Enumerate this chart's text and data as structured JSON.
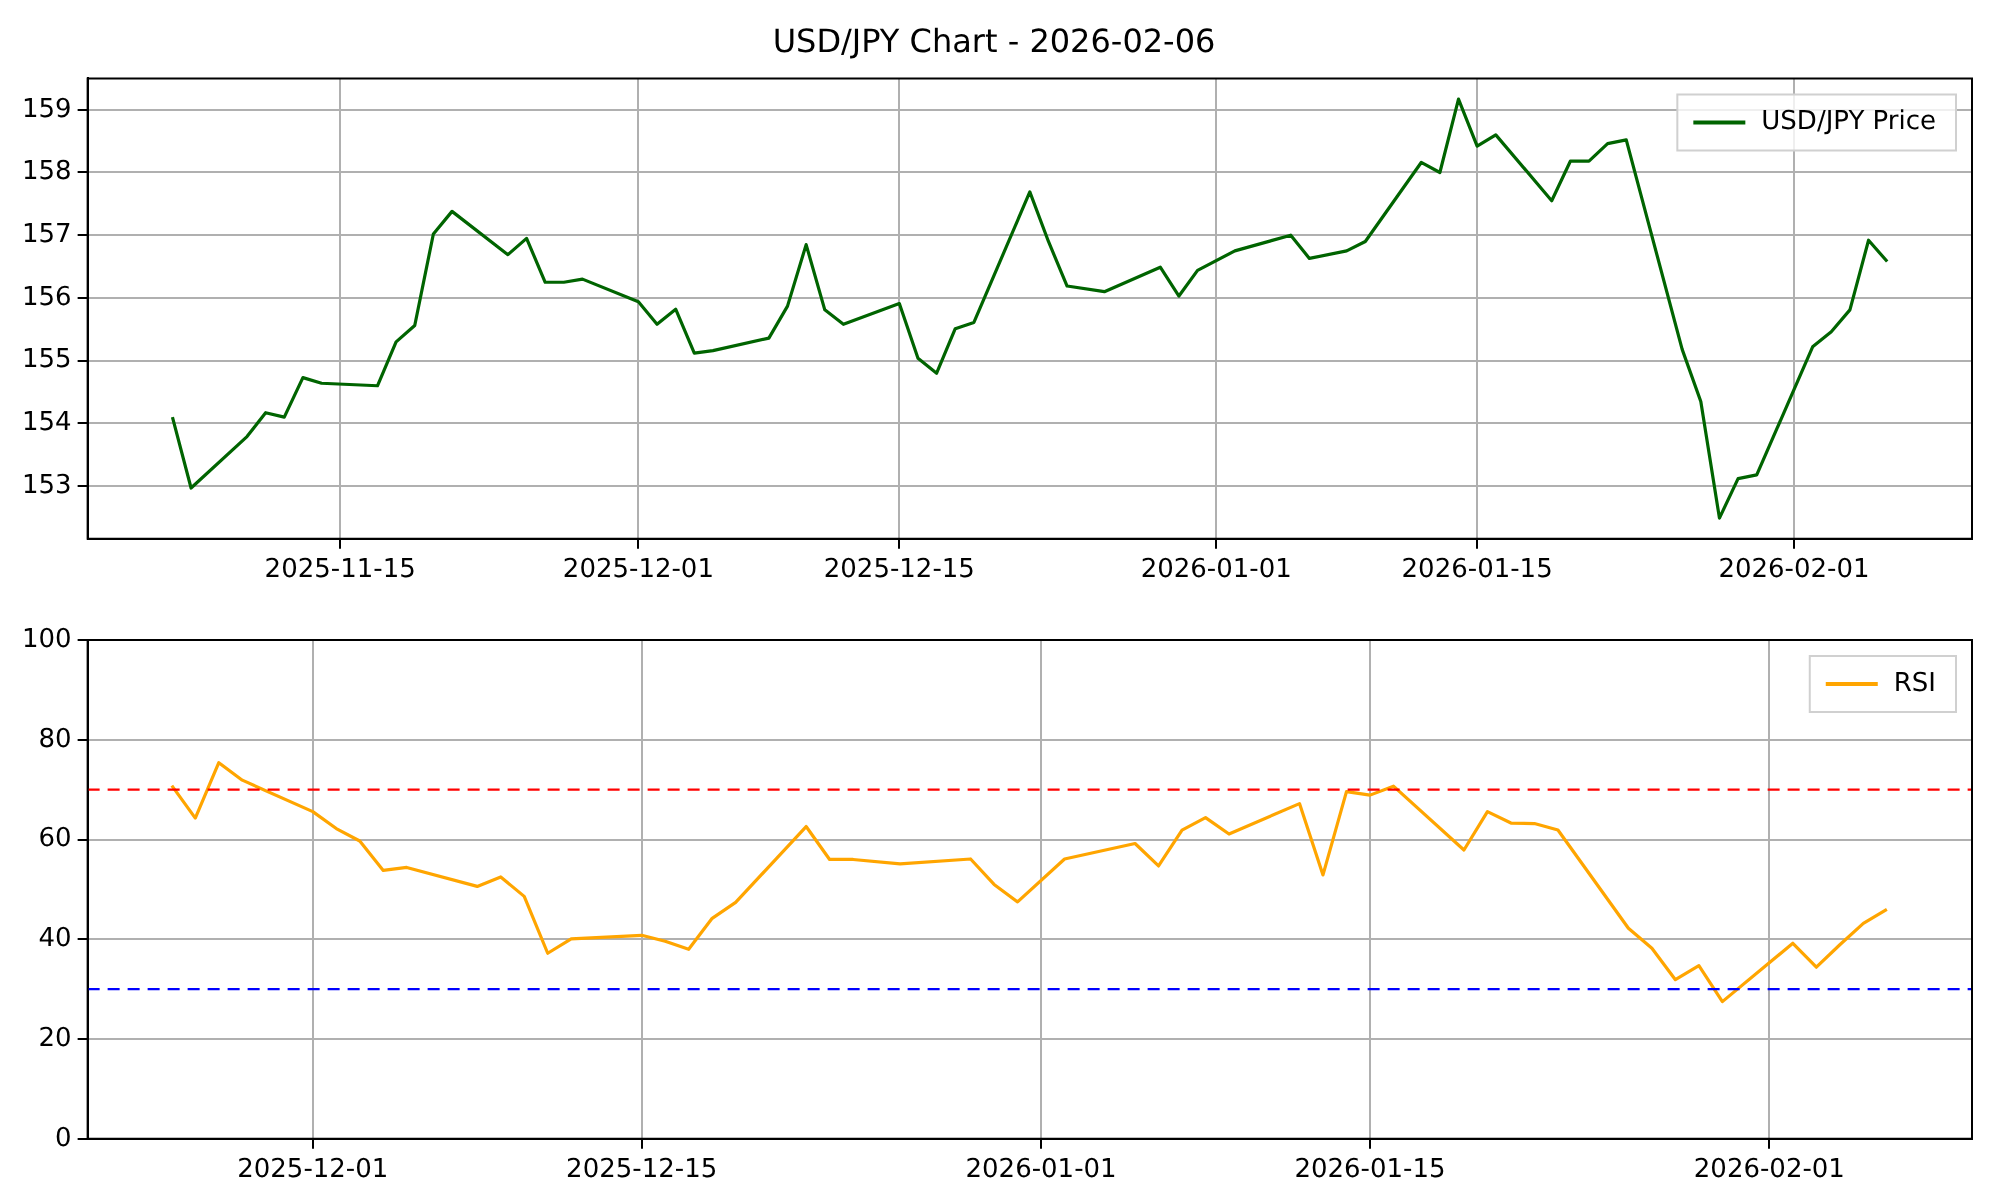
{
  "chart_data": [
    {
      "type": "line",
      "title": "USD/JPY Chart - 2026-02-06",
      "x": [
        "2025-11-06",
        "2025-11-07",
        "2025-11-10",
        "2025-11-11",
        "2025-11-12",
        "2025-11-13",
        "2025-11-14",
        "2025-11-17",
        "2025-11-18",
        "2025-11-19",
        "2025-11-20",
        "2025-11-21",
        "2025-11-24",
        "2025-11-25",
        "2025-11-26",
        "2025-11-27",
        "2025-11-28",
        "2025-12-01",
        "2025-12-02",
        "2025-12-03",
        "2025-12-04",
        "2025-12-05",
        "2025-12-08",
        "2025-12-09",
        "2025-12-10",
        "2025-12-11",
        "2025-12-12",
        "2025-12-15",
        "2025-12-16",
        "2025-12-17",
        "2025-12-18",
        "2025-12-19",
        "2025-12-22",
        "2025-12-23",
        "2025-12-24",
        "2025-12-26",
        "2025-12-29",
        "2025-12-30",
        "2025-12-31",
        "2026-01-02",
        "2026-01-05",
        "2026-01-06",
        "2026-01-08",
        "2026-01-09",
        "2026-01-12",
        "2026-01-13",
        "2026-01-14",
        "2026-01-15",
        "2026-01-16",
        "2026-01-19",
        "2026-01-20",
        "2026-01-21",
        "2026-01-22",
        "2026-01-23",
        "2026-01-26",
        "2026-01-27",
        "2026-01-28",
        "2026-01-29",
        "2026-01-30",
        "2026-02-02",
        "2026-02-03",
        "2026-02-04",
        "2026-02-05",
        "2026-02-06"
      ],
      "series": [
        {
          "name": "USD/JPY Price",
          "color": "#006400",
          "values": [
            154.1,
            152.97,
            153.79,
            154.17,
            154.1,
            154.73,
            154.64,
            154.6,
            155.3,
            155.56,
            157.02,
            157.38,
            156.69,
            156.95,
            156.25,
            156.25,
            156.3,
            155.94,
            155.58,
            155.82,
            155.12,
            155.16,
            155.36,
            155.87,
            156.85,
            155.81,
            155.58,
            155.91,
            155.04,
            154.8,
            155.51,
            155.61,
            157.69,
            156.9,
            156.19,
            156.1,
            156.49,
            156.03,
            156.44,
            156.75,
            157.0,
            156.63,
            156.75,
            156.9,
            158.16,
            158.0,
            159.17,
            158.42,
            158.6,
            157.55,
            158.18,
            158.18,
            158.46,
            158.52,
            155.18,
            154.35,
            152.49,
            153.12,
            153.18,
            155.22,
            155.46,
            155.81,
            156.92,
            156.58
          ]
        }
      ],
      "xlim": [
        "2025-11-01T10:48",
        "2026-02-10T13:12"
      ],
      "xticks": [
        "2025-11-15",
        "2025-12-01",
        "2025-12-15",
        "2026-01-01",
        "2026-01-15",
        "2026-02-01"
      ],
      "ylim": [
        152.16,
        159.5
      ],
      "yticks": [
        153,
        154,
        155,
        156,
        157,
        158,
        159
      ],
      "grid": true,
      "legend": "top right"
    },
    {
      "type": "line",
      "x": [
        "2025-11-25",
        "2025-11-26",
        "2025-11-27",
        "2025-11-28",
        "2025-12-01",
        "2025-12-02",
        "2025-12-03",
        "2025-12-04",
        "2025-12-05",
        "2025-12-08",
        "2025-12-09",
        "2025-12-10",
        "2025-12-11",
        "2025-12-12",
        "2025-12-15",
        "2025-12-16",
        "2025-12-17",
        "2025-12-18",
        "2025-12-19",
        "2025-12-22",
        "2025-12-23",
        "2025-12-24",
        "2025-12-26",
        "2025-12-29",
        "2025-12-30",
        "2025-12-31",
        "2026-01-02",
        "2026-01-05",
        "2026-01-06",
        "2026-01-07",
        "2026-01-08",
        "2026-01-09",
        "2026-01-12",
        "2026-01-13",
        "2026-01-14",
        "2026-01-15",
        "2026-01-16",
        "2026-01-19",
        "2026-01-20",
        "2026-01-21",
        "2026-01-22",
        "2026-01-23",
        "2026-01-26",
        "2026-01-27",
        "2026-01-28",
        "2026-01-29",
        "2026-01-30",
        "2026-02-02",
        "2026-02-03",
        "2026-02-04",
        "2026-02-05",
        "2026-02-06"
      ],
      "series": [
        {
          "name": "RSI",
          "color": "#ffa500",
          "values": [
            70.8,
            64.3,
            75.4,
            71.9,
            65.6,
            62.2,
            59.7,
            53.8,
            54.4,
            50.6,
            52.5,
            48.6,
            37.2,
            40.1,
            40.8,
            39.6,
            38.0,
            44.2,
            47.4,
            62.6,
            56.0,
            56.0,
            55.1,
            56.1,
            51.0,
            47.5,
            56.1,
            59.2,
            54.7,
            61.9,
            64.4,
            61.1,
            67.2,
            52.9,
            69.6,
            68.9,
            70.7,
            57.9,
            65.6,
            63.3,
            63.2,
            61.9,
            42.2,
            38.2,
            31.9,
            34.7,
            27.5,
            39.2,
            34.4,
            38.9,
            43.2,
            46.0
          ]
        }
      ],
      "xlim": [
        "2025-11-21T10:00",
        "2026-02-09T15:00"
      ],
      "xticks": [
        "2025-12-01",
        "2025-12-15",
        "2026-01-01",
        "2026-01-15",
        "2026-02-01"
      ],
      "ylim": [
        0,
        100
      ],
      "yticks": [
        0,
        20,
        40,
        60,
        80,
        100
      ],
      "ref_lines": [
        {
          "axis": "y",
          "value": 70,
          "color": "#ff0000",
          "line_style": "dashed"
        },
        {
          "axis": "y",
          "value": 30,
          "color": "#0000ff",
          "line_style": "dashed"
        }
      ],
      "grid": true,
      "legend": "top right"
    }
  ]
}
